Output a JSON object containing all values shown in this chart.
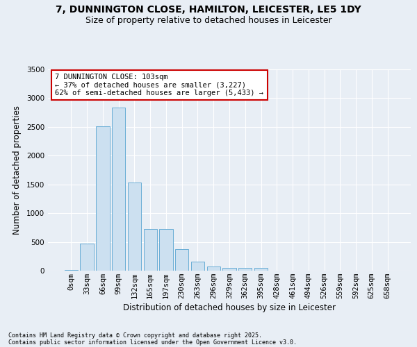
{
  "title": "7, DUNNINGTON CLOSE, HAMILTON, LEICESTER, LE5 1DY",
  "subtitle": "Size of property relative to detached houses in Leicester",
  "xlabel": "Distribution of detached houses by size in Leicester",
  "ylabel": "Number of detached properties",
  "footnote1": "Contains HM Land Registry data © Crown copyright and database right 2025.",
  "footnote2": "Contains public sector information licensed under the Open Government Licence v3.0.",
  "bar_labels": [
    "0sqm",
    "33sqm",
    "66sqm",
    "99sqm",
    "132sqm",
    "165sqm",
    "197sqm",
    "230sqm",
    "263sqm",
    "296sqm",
    "329sqm",
    "362sqm",
    "395sqm",
    "428sqm",
    "461sqm",
    "494sqm",
    "526sqm",
    "559sqm",
    "592sqm",
    "625sqm",
    "658sqm"
  ],
  "bar_values": [
    15,
    470,
    2510,
    2840,
    1530,
    730,
    730,
    370,
    155,
    75,
    50,
    50,
    50,
    0,
    0,
    0,
    0,
    0,
    0,
    0,
    0
  ],
  "bar_color": "#cce0f0",
  "bar_edgecolor": "#6aaed6",
  "annotation_text": "7 DUNNINGTON CLOSE: 103sqm\n← 37% of detached houses are smaller (3,227)\n62% of semi-detached houses are larger (5,433) →",
  "annotation_box_facecolor": "#ffffff",
  "annotation_box_edgecolor": "#cc0000",
  "ylim_max": 3500,
  "yticks": [
    0,
    500,
    1000,
    1500,
    2000,
    2500,
    3000,
    3500
  ],
  "background_color": "#e8eef5",
  "grid_color": "#ffffff",
  "title_fontsize": 10,
  "subtitle_fontsize": 9,
  "axis_label_fontsize": 8.5,
  "tick_fontsize": 7.5,
  "annotation_fontsize": 7.5,
  "footnote_fontsize": 6
}
